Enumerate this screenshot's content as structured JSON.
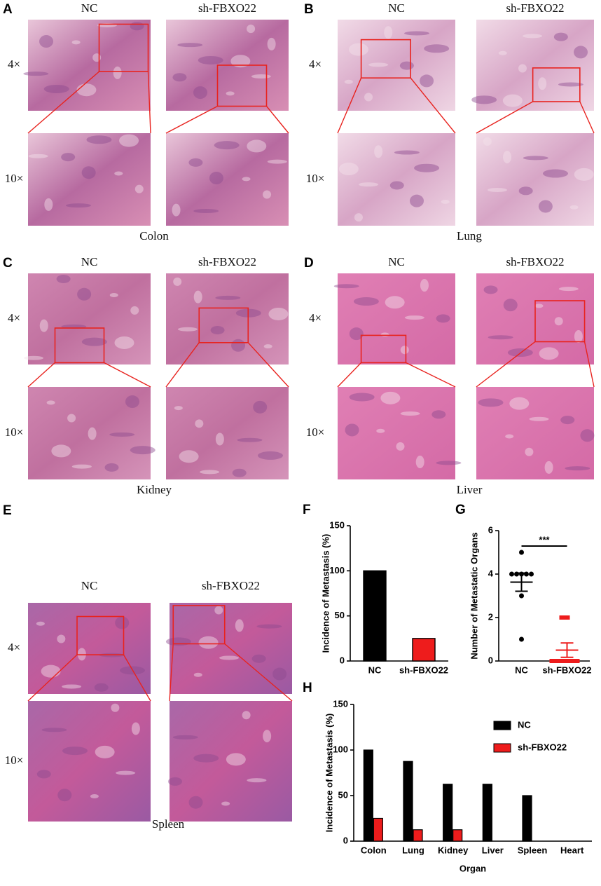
{
  "figure": {
    "panels": [
      {
        "letter": "A",
        "organ": "Colon",
        "columns": [
          "NC",
          "sh-FBXO22"
        ],
        "rows": [
          "4×",
          "10×"
        ]
      },
      {
        "letter": "B",
        "organ": "Lung",
        "columns": [
          "NC",
          "sh-FBXO22"
        ],
        "rows": [
          "4×",
          "10×"
        ]
      },
      {
        "letter": "C",
        "organ": "Kidney",
        "columns": [
          "NC",
          "sh-FBXO22"
        ],
        "rows": [
          "4×",
          "10×"
        ]
      },
      {
        "letter": "D",
        "organ": "Liver",
        "columns": [
          "NC",
          "sh-FBXO22"
        ],
        "rows": [
          "4×",
          "10×"
        ]
      },
      {
        "letter": "E",
        "organ": "Spleen",
        "columns": [
          "NC",
          "sh-FBXO22"
        ],
        "rows": [
          "4×",
          "10×"
        ]
      }
    ]
  },
  "chart_data": [
    {
      "type": "bar",
      "label": "F",
      "ylabel": "Incidence of Metastasis (%)",
      "categories": [
        "NC",
        "sh-FBXO22"
      ],
      "values": [
        100,
        25
      ],
      "colors": [
        "#000000",
        "#ee1c1c"
      ],
      "ylim": [
        0,
        150
      ],
      "yticks": [
        0,
        50,
        100,
        150
      ]
    },
    {
      "type": "scatter",
      "label": "G",
      "ylabel": "Number of Metastatic Organs",
      "annotation": "***",
      "categories": [
        "NC",
        "sh-FBXO22"
      ],
      "series": [
        {
          "name": "NC",
          "color": "#000000",
          "values": [
            5,
            4,
            4,
            4,
            4,
            4,
            3,
            1
          ],
          "mean": 3.63,
          "sem": 0.42
        },
        {
          "name": "sh-FBXO22",
          "color": "#ee1c1c",
          "values": [
            2,
            2,
            0,
            0,
            0,
            0,
            0,
            0
          ],
          "mean": 0.5,
          "sem": 0.33
        }
      ],
      "ylim": [
        0,
        6
      ],
      "yticks": [
        0,
        2,
        4,
        6
      ]
    },
    {
      "type": "grouped_bar",
      "label": "H",
      "ylabel": "Incidence of Metastasis (%)",
      "xlabel": "Organ",
      "categories": [
        "Colon",
        "Lung",
        "Kidney",
        "Liver",
        "Spleen",
        "Heart"
      ],
      "series": [
        {
          "name": "NC",
          "color": "#000000",
          "values": [
            100,
            87.5,
            62.5,
            62.5,
            50,
            0
          ]
        },
        {
          "name": "sh-FBXO22",
          "color": "#ee1c1c",
          "values": [
            25,
            12.5,
            12.5,
            0,
            0,
            0
          ]
        }
      ],
      "ylim": [
        0,
        150
      ],
      "yticks": [
        0,
        50,
        100,
        150
      ],
      "legend": "top-right"
    }
  ]
}
